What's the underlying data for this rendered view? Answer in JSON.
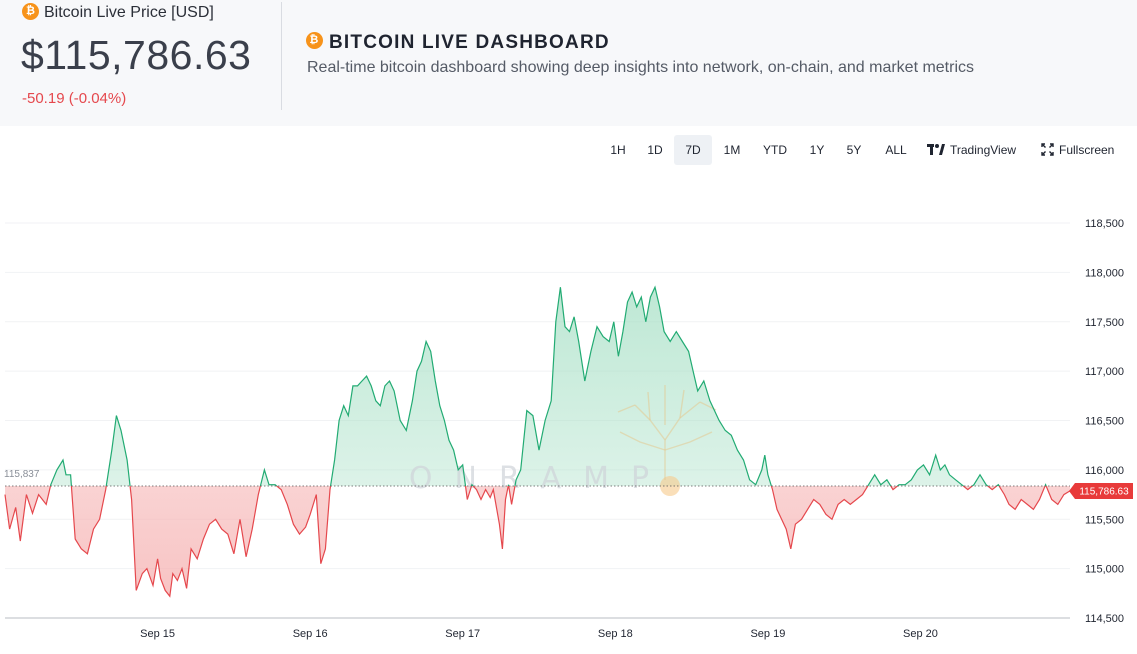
{
  "header": {
    "price_label": "Bitcoin Live Price [USD]",
    "price_value": "$115,786.63",
    "price_change": "-50.19 (-0.04%)",
    "title": "BITCOIN LIVE DASHBOARD",
    "subtitle": "Real-time bitcoin dashboard showing deep insights into network, on-chain, and market metrics",
    "icon": "bitcoin-icon"
  },
  "toolbar": {
    "timeframes": [
      "1H",
      "1D",
      "7D",
      "1M",
      "YTD",
      "1Y",
      "5Y",
      "ALL"
    ],
    "active_timeframe": "7D",
    "tradingview_label": "TradingView",
    "fullscreen_label": "Fullscreen"
  },
  "colors": {
    "up": "#22ab73",
    "down": "#e5484d",
    "up_fill": "#a8e0c6",
    "down_fill": "#f6b5b5",
    "accent": "#f7931a"
  },
  "chart_data": {
    "type": "area",
    "baseline": 115837,
    "baseline_label": "115,837",
    "last_price": 115786.63,
    "last_price_label": "115,786.63",
    "watermark": "ONRAMP",
    "ylim": [
      114500,
      118750
    ],
    "yticks": [
      114500,
      115000,
      115500,
      116000,
      116500,
      117000,
      117500,
      118000,
      118500
    ],
    "ytick_labels": [
      "114,500",
      "115,000",
      "115,500",
      "116,000",
      "116,500",
      "117,000",
      "117,500",
      "118,000",
      "118,500"
    ],
    "xlabels": [
      {
        "label": "Sep 15",
        "t": 1.0
      },
      {
        "label": "Sep 16",
        "t": 2.0
      },
      {
        "label": "Sep 17",
        "t": 3.0
      },
      {
        "label": "Sep 18",
        "t": 4.0
      },
      {
        "label": "Sep 19",
        "t": 5.0
      },
      {
        "label": "Sep 20",
        "t": 6.0
      }
    ],
    "xlim": [
      0.0,
      6.98
    ],
    "series": [
      {
        "points": [
          [
            0.0,
            115750
          ],
          [
            0.03,
            115400
          ],
          [
            0.07,
            115620
          ],
          [
            0.1,
            115280
          ],
          [
            0.14,
            115750
          ],
          [
            0.18,
            115560
          ],
          [
            0.22,
            115750
          ],
          [
            0.27,
            115650
          ],
          [
            0.3,
            115850
          ],
          [
            0.34,
            116000
          ],
          [
            0.38,
            116100
          ],
          [
            0.4,
            115950
          ],
          [
            0.43,
            115950
          ],
          [
            0.46,
            115300
          ],
          [
            0.5,
            115200
          ],
          [
            0.54,
            115150
          ],
          [
            0.58,
            115400
          ],
          [
            0.62,
            115500
          ],
          [
            0.66,
            115800
          ],
          [
            0.7,
            116200
          ],
          [
            0.73,
            116550
          ],
          [
            0.76,
            116400
          ],
          [
            0.8,
            116100
          ],
          [
            0.83,
            115700
          ],
          [
            0.86,
            114780
          ],
          [
            0.9,
            114950
          ],
          [
            0.93,
            115000
          ],
          [
            0.97,
            114830
          ],
          [
            1.0,
            115100
          ],
          [
            1.02,
            114900
          ],
          [
            1.05,
            114780
          ],
          [
            1.08,
            114720
          ],
          [
            1.1,
            114950
          ],
          [
            1.13,
            114880
          ],
          [
            1.16,
            115000
          ],
          [
            1.19,
            114800
          ],
          [
            1.22,
            115200
          ],
          [
            1.26,
            115100
          ],
          [
            1.3,
            115300
          ],
          [
            1.34,
            115450
          ],
          [
            1.38,
            115500
          ],
          [
            1.42,
            115400
          ],
          [
            1.46,
            115350
          ],
          [
            1.5,
            115150
          ],
          [
            1.54,
            115500
          ],
          [
            1.58,
            115120
          ],
          [
            1.62,
            115400
          ],
          [
            1.66,
            115750
          ],
          [
            1.7,
            116000
          ],
          [
            1.73,
            115850
          ],
          [
            1.77,
            115850
          ],
          [
            1.81,
            115800
          ],
          [
            1.85,
            115650
          ],
          [
            1.89,
            115450
          ],
          [
            1.93,
            115350
          ],
          [
            1.97,
            115420
          ],
          [
            2.0,
            115550
          ],
          [
            2.04,
            115750
          ],
          [
            2.07,
            115050
          ],
          [
            2.1,
            115200
          ],
          [
            2.13,
            115800
          ],
          [
            2.16,
            116100
          ],
          [
            2.19,
            116500
          ],
          [
            2.22,
            116650
          ],
          [
            2.25,
            116550
          ],
          [
            2.28,
            116850
          ],
          [
            2.31,
            116850
          ],
          [
            2.34,
            116900
          ],
          [
            2.37,
            116950
          ],
          [
            2.4,
            116850
          ],
          [
            2.43,
            116700
          ],
          [
            2.46,
            116650
          ],
          [
            2.49,
            116850
          ],
          [
            2.52,
            116900
          ],
          [
            2.55,
            116800
          ],
          [
            2.59,
            116500
          ],
          [
            2.63,
            116400
          ],
          [
            2.67,
            116700
          ],
          [
            2.7,
            117000
          ],
          [
            2.73,
            117100
          ],
          [
            2.76,
            117300
          ],
          [
            2.79,
            117200
          ],
          [
            2.82,
            116900
          ],
          [
            2.85,
            116650
          ],
          [
            2.88,
            116500
          ],
          [
            2.91,
            116300
          ],
          [
            2.94,
            116200
          ],
          [
            2.97,
            116000
          ],
          [
            3.0,
            116050
          ],
          [
            3.03,
            115700
          ],
          [
            3.06,
            115850
          ],
          [
            3.09,
            115800
          ],
          [
            3.12,
            115700
          ],
          [
            3.15,
            115800
          ],
          [
            3.18,
            115720
          ],
          [
            3.2,
            115800
          ],
          [
            3.24,
            115450
          ],
          [
            3.26,
            115200
          ],
          [
            3.28,
            115700
          ],
          [
            3.3,
            115850
          ],
          [
            3.32,
            115650
          ],
          [
            3.35,
            115900
          ],
          [
            3.38,
            116000
          ],
          [
            3.42,
            116600
          ],
          [
            3.46,
            116550
          ],
          [
            3.5,
            116200
          ],
          [
            3.54,
            116500
          ],
          [
            3.58,
            116700
          ],
          [
            3.61,
            117500
          ],
          [
            3.64,
            117850
          ],
          [
            3.67,
            117450
          ],
          [
            3.7,
            117400
          ],
          [
            3.73,
            117550
          ],
          [
            3.76,
            117300
          ],
          [
            3.8,
            116900
          ],
          [
            3.84,
            117200
          ],
          [
            3.88,
            117450
          ],
          [
            3.92,
            117350
          ],
          [
            3.96,
            117300
          ],
          [
            3.99,
            117500
          ],
          [
            4.02,
            117150
          ],
          [
            4.05,
            117400
          ],
          [
            4.08,
            117700
          ],
          [
            4.11,
            117800
          ],
          [
            4.14,
            117650
          ],
          [
            4.17,
            117750
          ],
          [
            4.2,
            117500
          ],
          [
            4.23,
            117750
          ],
          [
            4.26,
            117850
          ],
          [
            4.29,
            117650
          ],
          [
            4.32,
            117400
          ],
          [
            4.36,
            117300
          ],
          [
            4.4,
            117400
          ],
          [
            4.44,
            117300
          ],
          [
            4.48,
            117200
          ],
          [
            4.51,
            117000
          ],
          [
            4.54,
            116800
          ],
          [
            4.58,
            116900
          ],
          [
            4.62,
            116700
          ],
          [
            4.65,
            116600
          ],
          [
            4.68,
            116500
          ],
          [
            4.72,
            116400
          ],
          [
            4.76,
            116350
          ],
          [
            4.8,
            116200
          ],
          [
            4.84,
            116100
          ],
          [
            4.88,
            115900
          ],
          [
            4.92,
            115850
          ],
          [
            4.96,
            116000
          ],
          [
            4.98,
            116150
          ],
          [
            5.0,
            115950
          ],
          [
            5.03,
            115800
          ],
          [
            5.06,
            115600
          ],
          [
            5.09,
            115500
          ],
          [
            5.12,
            115400
          ],
          [
            5.15,
            115200
          ],
          [
            5.18,
            115450
          ],
          [
            5.22,
            115500
          ],
          [
            5.26,
            115600
          ],
          [
            5.3,
            115700
          ],
          [
            5.34,
            115650
          ],
          [
            5.38,
            115550
          ],
          [
            5.42,
            115500
          ],
          [
            5.46,
            115650
          ],
          [
            5.5,
            115700
          ],
          [
            5.54,
            115650
          ],
          [
            5.58,
            115700
          ],
          [
            5.62,
            115750
          ],
          [
            5.66,
            115850
          ],
          [
            5.7,
            115950
          ],
          [
            5.74,
            115850
          ],
          [
            5.78,
            115900
          ],
          [
            5.82,
            115800
          ],
          [
            5.86,
            115850
          ],
          [
            5.9,
            115850
          ],
          [
            5.94,
            115900
          ],
          [
            5.98,
            116000
          ],
          [
            6.02,
            116050
          ],
          [
            6.06,
            115950
          ],
          [
            6.1,
            116150
          ],
          [
            6.13,
            116000
          ],
          [
            6.16,
            116050
          ],
          [
            6.19,
            115950
          ],
          [
            6.23,
            115900
          ],
          [
            6.27,
            115850
          ],
          [
            6.31,
            115800
          ],
          [
            6.35,
            115850
          ],
          [
            6.39,
            115950
          ],
          [
            6.43,
            115850
          ],
          [
            6.47,
            115800
          ],
          [
            6.51,
            115850
          ],
          [
            6.55,
            115750
          ],
          [
            6.58,
            115650
          ],
          [
            6.62,
            115600
          ],
          [
            6.66,
            115700
          ],
          [
            6.7,
            115650
          ],
          [
            6.74,
            115600
          ],
          [
            6.78,
            115700
          ],
          [
            6.82,
            115850
          ],
          [
            6.86,
            115700
          ],
          [
            6.9,
            115650
          ],
          [
            6.94,
            115750
          ],
          [
            6.98,
            115787
          ]
        ]
      }
    ]
  }
}
